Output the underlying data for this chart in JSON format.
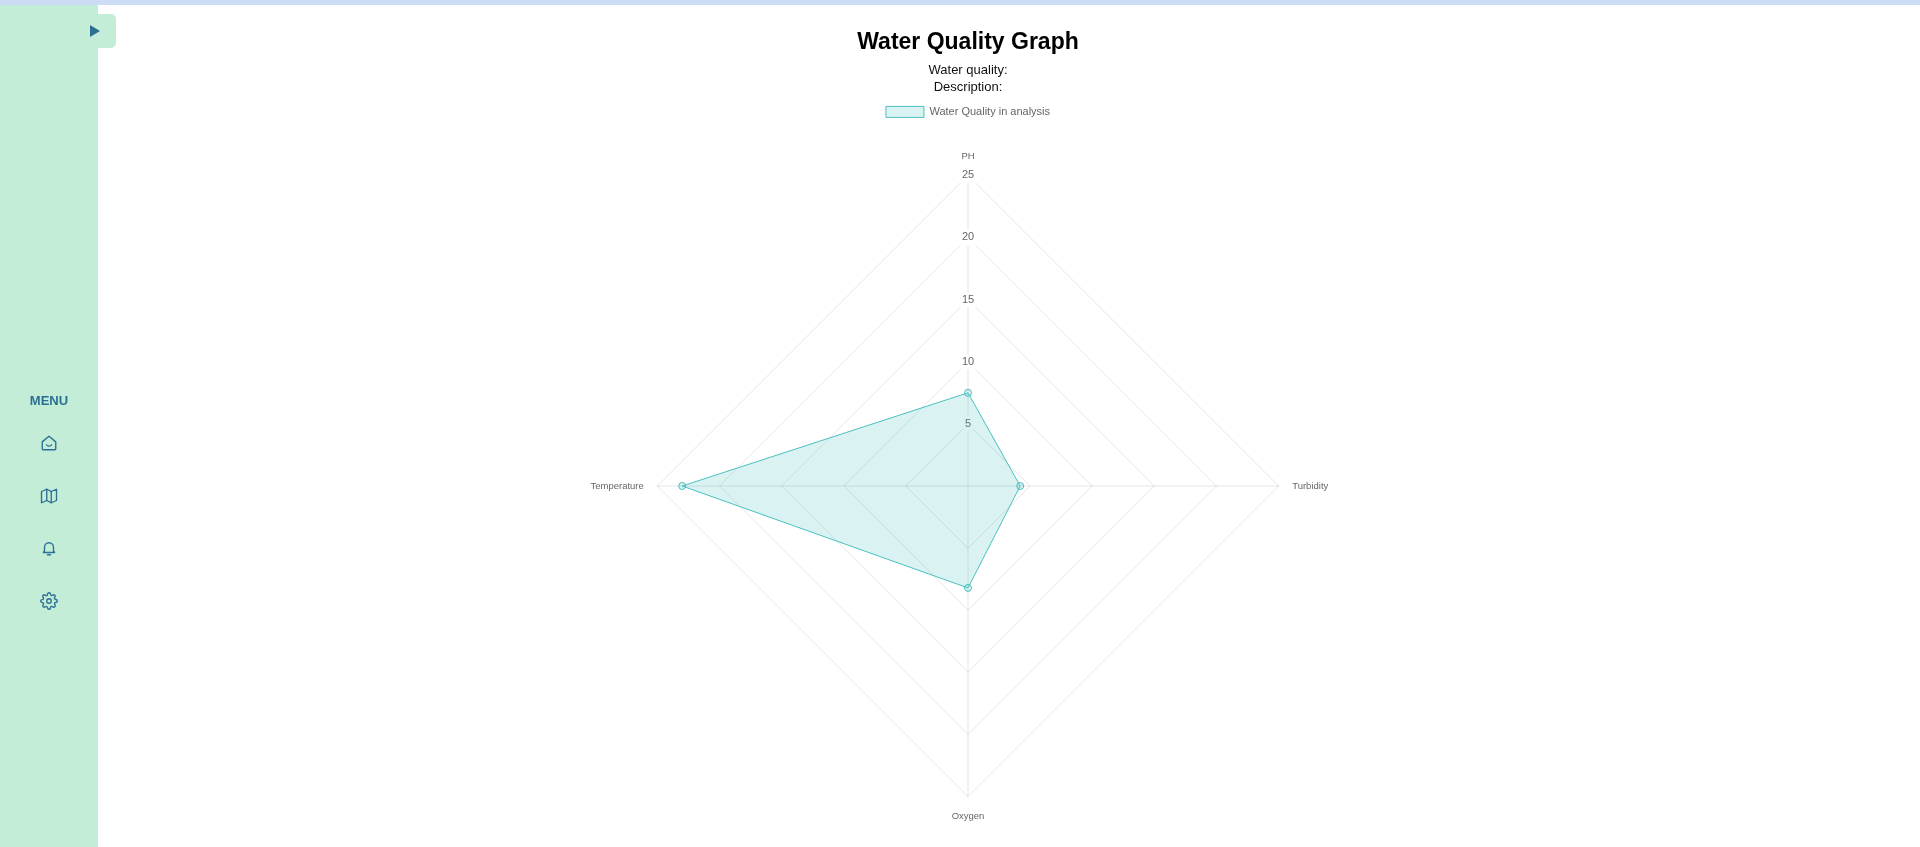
{
  "chart_data": {
    "type": "radar",
    "title": "Water Quality Graph",
    "subtitle": "Water quality:\nDescription:",
    "categories": [
      "PH",
      "Turbidity",
      "Oxygen",
      "Temperature"
    ],
    "series": [
      {
        "name": "Water Quality in analysis",
        "color": "#4bc0c0",
        "values": [
          7.5,
          4.2,
          8.2,
          23
        ]
      }
    ],
    "ylim": [
      0,
      25
    ],
    "yticks": [
      5,
      10,
      15,
      20,
      25
    ],
    "grid": true,
    "legend": "top",
    "marker": "circle",
    "annotations": [
      "MENU"
    ]
  }
}
